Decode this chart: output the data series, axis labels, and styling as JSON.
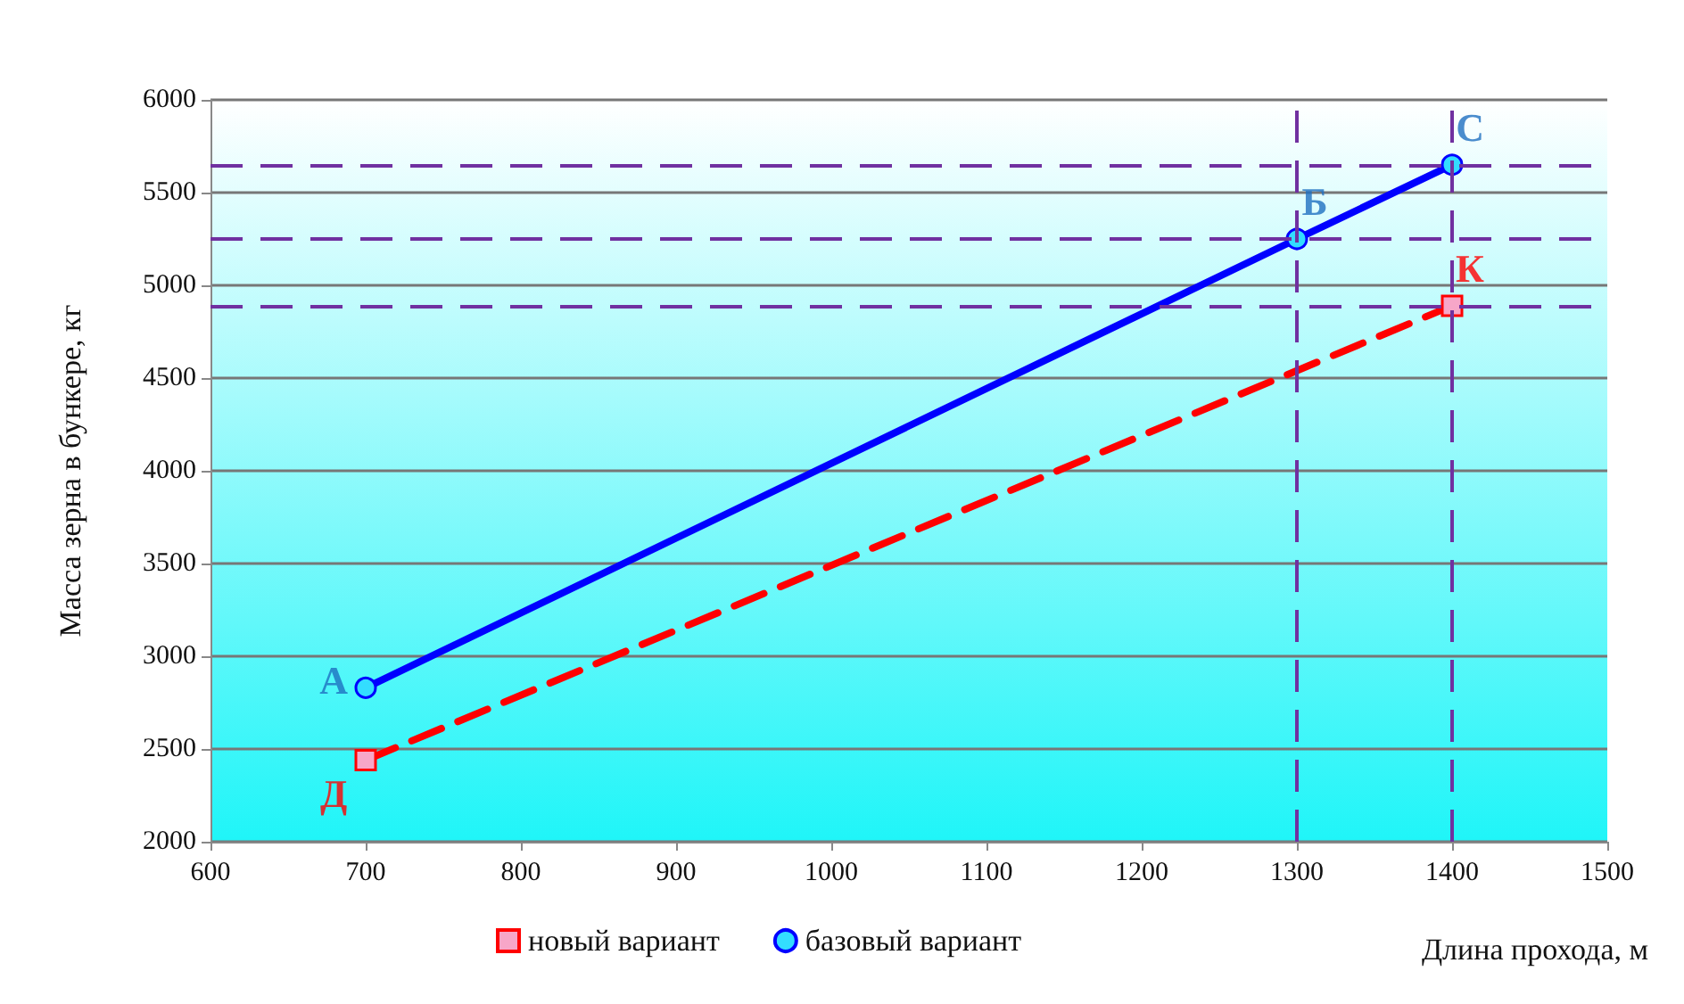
{
  "chart_data": {
    "type": "line",
    "xlabel": "Длина прохода, м",
    "ylabel": "Масса зерна в бункере, кг",
    "series": [
      {
        "name": "новый вариант",
        "color": "#ff0000",
        "marker": "square",
        "line_style": "dashed",
        "x": [
          700,
          1400
        ],
        "values": [
          2440,
          4890
        ]
      },
      {
        "name": "базовый вариант",
        "color": "#0000ff",
        "marker": "circle",
        "line_style": "solid",
        "x": [
          700,
          1300,
          1400
        ],
        "values": [
          2830,
          5250,
          5650
        ]
      }
    ],
    "xlim": [
      600,
      1500
    ],
    "xticks": [
      600,
      700,
      800,
      900,
      1000,
      1100,
      1200,
      1300,
      1400,
      1500
    ],
    "ylim": [
      2000,
      6000
    ],
    "yticks": [
      2000,
      2500,
      3000,
      3500,
      4000,
      4500,
      5000,
      5500,
      6000
    ],
    "grid": "y",
    "legend": "bottom left",
    "ref_lines": [
      {
        "axis": "y",
        "value": 5650,
        "color": "#7030a0",
        "line_style": "dashed"
      },
      {
        "axis": "y",
        "value": 5250,
        "color": "#7030a0",
        "line_style": "dashed"
      },
      {
        "axis": "y",
        "value": 4890,
        "color": "#7030a0",
        "line_style": "dashed"
      },
      {
        "axis": "x",
        "value": 1300,
        "color": "#7030a0",
        "line_style": "dashed"
      },
      {
        "axis": "x",
        "value": 1400,
        "color": "#7030a0",
        "line_style": "dashed"
      }
    ],
    "annotations": [
      {
        "text": "А",
        "x": 700,
        "y": 2830
      },
      {
        "text": "Б",
        "x": 1300,
        "y": 5250
      },
      {
        "text": "С",
        "x": 1400,
        "y": 5650
      },
      {
        "text": "Д",
        "x": 700,
        "y": 2440
      },
      {
        "text": "К",
        "x": 1400,
        "y": 4890
      }
    ]
  }
}
